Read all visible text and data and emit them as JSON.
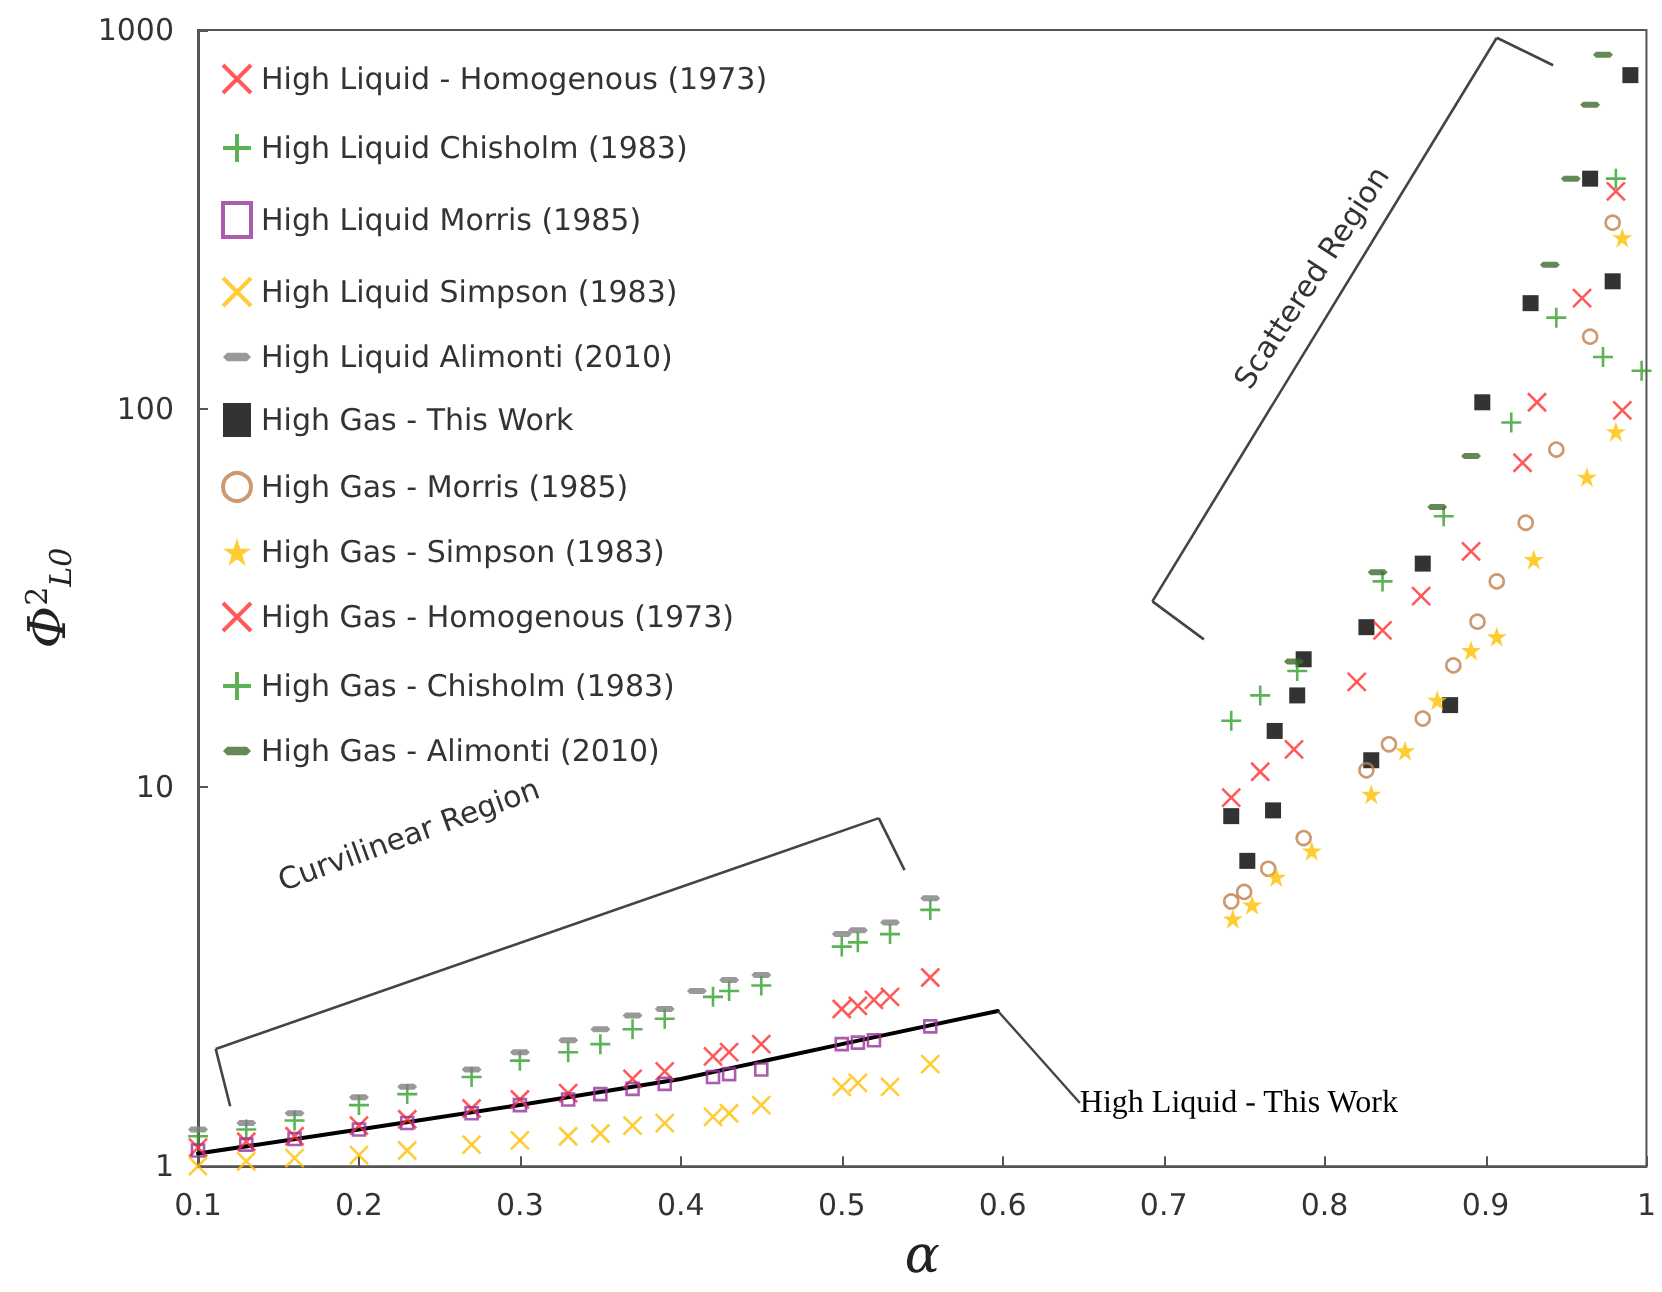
{
  "chart_data": {
    "type": "scatter",
    "xlabel": "α",
    "ylabel": "Φ$^{2}$$_{L0}$",
    "xlim": [
      0.1,
      1
    ],
    "xticks": [
      0.1,
      0.2,
      0.3,
      0.4,
      0.5,
      0.6,
      0.7,
      0.8,
      0.9,
      1
    ],
    "ylim": [
      1,
      1000
    ],
    "yticks": [
      1,
      10,
      100,
      1000
    ],
    "log": "y",
    "grid": false,
    "legend": "top left",
    "annotations": [
      "Curvilinear Region",
      "Scattered Region"
    ],
    "series": [
      {
        "name": "High Liquid - Homogenous (1973)",
        "color": "#ff3030",
        "marker": "cross",
        "x": [
          0.1,
          0.13,
          0.16,
          0.2,
          0.23,
          0.27,
          0.3,
          0.33,
          0.37,
          0.39,
          0.42,
          0.43,
          0.45,
          0.5,
          0.51,
          0.52,
          0.53,
          0.555
        ],
        "values": [
          1.12,
          1.16,
          1.2,
          1.28,
          1.33,
          1.42,
          1.5,
          1.56,
          1.7,
          1.78,
          1.95,
          2.0,
          2.1,
          2.6,
          2.65,
          2.75,
          2.8,
          3.15
        ]
      },
      {
        "name": "High Liquid Chisholm (1983)",
        "color": "#33a02c",
        "marker": "plus",
        "x": [
          0.1,
          0.13,
          0.16,
          0.2,
          0.23,
          0.27,
          0.3,
          0.33,
          0.35,
          0.37,
          0.39,
          0.42,
          0.43,
          0.45,
          0.5,
          0.51,
          0.53,
          0.555
        ],
        "values": [
          1.2,
          1.25,
          1.32,
          1.45,
          1.55,
          1.72,
          1.9,
          2.0,
          2.1,
          2.3,
          2.45,
          2.8,
          2.9,
          3.0,
          3.8,
          3.9,
          4.1,
          4.75
        ]
      },
      {
        "name": "High Liquid Morris (1985)",
        "color": "#993399",
        "marker": "square-open",
        "x": [
          0.1,
          0.13,
          0.16,
          0.2,
          0.23,
          0.27,
          0.3,
          0.33,
          0.35,
          0.37,
          0.39,
          0.42,
          0.43,
          0.45,
          0.5,
          0.51,
          0.52,
          0.555
        ],
        "values": [
          1.1,
          1.14,
          1.18,
          1.25,
          1.3,
          1.38,
          1.45,
          1.5,
          1.55,
          1.6,
          1.65,
          1.72,
          1.75,
          1.8,
          2.1,
          2.12,
          2.15,
          2.34
        ]
      },
      {
        "name": "High Liquid Simpson (1983)",
        "color": "#ffc000",
        "marker": "cross",
        "x": [
          0.1,
          0.13,
          0.16,
          0.2,
          0.23,
          0.27,
          0.3,
          0.33,
          0.35,
          0.37,
          0.39,
          0.42,
          0.43,
          0.45,
          0.5,
          0.51,
          0.53,
          0.555
        ],
        "values": [
          1.0,
          1.03,
          1.05,
          1.07,
          1.1,
          1.14,
          1.17,
          1.2,
          1.22,
          1.28,
          1.3,
          1.35,
          1.38,
          1.45,
          1.62,
          1.66,
          1.62,
          1.86
        ]
      },
      {
        "name": "High Liquid Alimonti (2010)",
        "color": "#808080",
        "x": [
          0.1,
          0.13,
          0.16,
          0.2,
          0.23,
          0.27,
          0.3,
          0.33,
          0.35,
          0.37,
          0.39,
          0.41,
          0.43,
          0.45,
          0.5,
          0.51,
          0.53,
          0.555
        ],
        "values": [
          1.25,
          1.3,
          1.38,
          1.52,
          1.62,
          1.8,
          2.0,
          2.15,
          2.3,
          2.5,
          2.6,
          2.9,
          3.1,
          3.2,
          4.1,
          4.2,
          4.4,
          5.1
        ]
      },
      {
        "name": "High Gas - This Work",
        "color": "#000000",
        "marker": "square",
        "x": [
          0.742,
          0.752,
          0.768,
          0.769,
          0.783,
          0.787,
          0.826,
          0.829,
          0.861,
          0.878,
          0.898,
          0.928,
          0.965,
          0.979,
          0.99
        ],
        "values": [
          8.4,
          6.4,
          8.7,
          14.1,
          17.5,
          21.8,
          26.5,
          11.8,
          39,
          16.5,
          104,
          190,
          405,
          217,
          760
        ]
      },
      {
        "name": "High Gas - Morris (1985)",
        "color": "#c0804d",
        "marker": "circle-open",
        "x": [
          0.742,
          0.75,
          0.765,
          0.787,
          0.826,
          0.84,
          0.861,
          0.88,
          0.895,
          0.907,
          0.925,
          0.944,
          0.965,
          0.979
        ],
        "values": [
          5.0,
          5.3,
          6.1,
          7.35,
          11.1,
          13,
          15.2,
          21,
          27.4,
          35,
          50,
          78,
          155,
          310
        ]
      },
      {
        "name": "High Gas - Simpson (1983)",
        "color": "#ffc000",
        "marker": "star",
        "x": [
          0.743,
          0.755,
          0.77,
          0.792,
          0.829,
          0.85,
          0.87,
          0.891,
          0.907,
          0.93,
          0.963,
          0.981,
          0.985
        ],
        "values": [
          4.5,
          4.9,
          5.8,
          6.8,
          9.6,
          12.5,
          17,
          23,
          25,
          40,
          66,
          87,
          283
        ]
      },
      {
        "name": "High Gas - Homogenous (1973)",
        "color": "#ff3030",
        "marker": "cross",
        "x": [
          0.742,
          0.76,
          0.781,
          0.82,
          0.836,
          0.86,
          0.891,
          0.923,
          0.932,
          0.96,
          0.981,
          0.985
        ],
        "values": [
          9.4,
          11,
          12.6,
          19,
          26,
          32,
          42,
          72,
          104,
          196,
          375,
          99
        ]
      },
      {
        "name": "High Gas - Chisholm (1983)",
        "color": "#33a02c",
        "marker": "plus",
        "x": [
          0.742,
          0.76,
          0.783,
          0.836,
          0.874,
          0.916,
          0.944,
          0.973,
          0.981,
          0.997
        ],
        "values": [
          15,
          17.5,
          20.3,
          35,
          52,
          92,
          174,
          137,
          405,
          126
        ]
      },
      {
        "name": "High Gas - Alimonti (2010)",
        "color": "#3d6b2a",
        "x": [
          0.781,
          0.833,
          0.87,
          0.891,
          0.94,
          0.953,
          0.965,
          0.973
        ],
        "values": [
          21.5,
          37,
          55,
          75,
          240,
          405,
          635,
          860
        ]
      },
      {
        "name": "High Liquid - This Work",
        "type": "line",
        "color": "#000000",
        "marker": "none",
        "x": [
          0.1,
          0.2,
          0.3,
          0.4,
          0.5,
          0.597
        ],
        "values": [
          1.08,
          1.25,
          1.45,
          1.7,
          2.1,
          2.57
        ]
      }
    ]
  }
}
